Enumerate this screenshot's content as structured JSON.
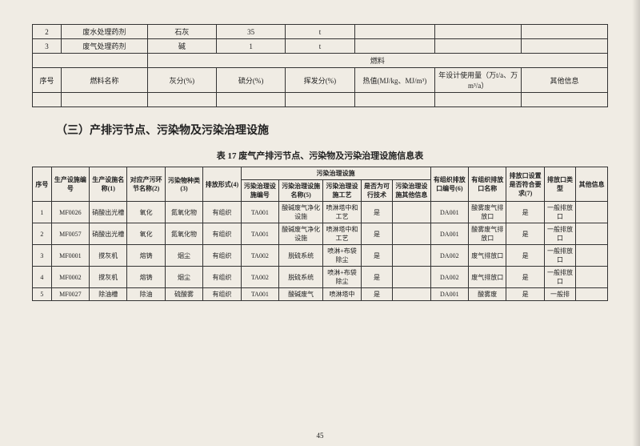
{
  "table1": {
    "rows": [
      {
        "seq": "2",
        "name": "废水处理药剂",
        "col3": "石灰",
        "col4": "35",
        "col5": "t",
        "col6": "",
        "col7": "",
        "col8": ""
      },
      {
        "seq": "3",
        "name": "废气处理药剂",
        "col3": "碱",
        "col4": "1",
        "col5": "t",
        "col6": "",
        "col7": "",
        "col8": ""
      }
    ],
    "fuel_label": "燃料",
    "headers": {
      "seq": "序号",
      "name": "燃料名称",
      "ash": "灰分(%)",
      "sulfur": "硫分(%)",
      "volatile": "挥发分(%)",
      "heat": "热值(MJ/kg、MJ/m³)",
      "usage": "年设计使用量（万t/a、万 m³/a）",
      "other": "其他信息"
    },
    "blank": ""
  },
  "section_title": "（三）产排污节点、污染物及污染治理设施",
  "table2_caption": "表 17  废气产排污节点、污染物及污染治理设施信息表",
  "table2": {
    "headers": {
      "seq": "序号",
      "facility_no": "生产设施编号",
      "facility_name": "生产设施名称(1)",
      "link_name": "对应产污环节名称(2)",
      "pollutant": "污染物种类(3)",
      "emit_form": "排放形式(4)",
      "treat_group": "污染治理设施",
      "treat_no": "污染治理设施编号",
      "treat_name": "污染治理设施名称(5)",
      "treat_tech": "污染治理设施工艺",
      "feasible": "是否为可行技术",
      "treat_other": "污染治理设施其他信息",
      "org_no": "有组织排放口编号(6)",
      "org_name": "有组织排放口名称",
      "meet_req": "排放口设置是否符合要求(7)",
      "type": "排放口类型",
      "other": "其他信息"
    },
    "rows": [
      {
        "seq": "1",
        "facility_no": "MF0026",
        "facility_name": "硝酸出光槽",
        "link_name": "氧化",
        "pollutant": "氮氧化物",
        "emit_form": "有组织",
        "treat_no": "TA001",
        "treat_name": "酸碱废气净化设施",
        "treat_tech": "喷淋塔中和工艺",
        "feasible": "是",
        "treat_other": "",
        "org_no": "DA001",
        "org_name": "酸雾废气排放口",
        "meet_req": "是",
        "type": "一般排放口",
        "other": ""
      },
      {
        "seq": "2",
        "facility_no": "MF0057",
        "facility_name": "硝酸出光槽",
        "link_name": "氧化",
        "pollutant": "氮氧化物",
        "emit_form": "有组织",
        "treat_no": "TA001",
        "treat_name": "酸碱废气净化设施",
        "treat_tech": "喷淋塔中和工艺",
        "feasible": "是",
        "treat_other": "",
        "org_no": "DA001",
        "org_name": "酸雾废气排放口",
        "meet_req": "是",
        "type": "一般排放口",
        "other": ""
      },
      {
        "seq": "3",
        "facility_no": "MF0001",
        "facility_name": "搅灰机",
        "link_name": "熔铸",
        "pollutant": "烟尘",
        "emit_form": "有组织",
        "treat_no": "TA002",
        "treat_name": "脱硫系统",
        "treat_tech": "喷淋+布袋除尘",
        "feasible": "是",
        "treat_other": "",
        "org_no": "DA002",
        "org_name": "废气排放口",
        "meet_req": "是",
        "type": "一般排放口",
        "other": ""
      },
      {
        "seq": "4",
        "facility_no": "MF0002",
        "facility_name": "搅灰机",
        "link_name": "熔铸",
        "pollutant": "烟尘",
        "emit_form": "有组织",
        "treat_no": "TA002",
        "treat_name": "脱硫系统",
        "treat_tech": "喷淋+布袋除尘",
        "feasible": "是",
        "treat_other": "",
        "org_no": "DA002",
        "org_name": "废气排放口",
        "meet_req": "是",
        "type": "一般排放口",
        "other": ""
      },
      {
        "seq": "5",
        "facility_no": "MF0027",
        "facility_name": "除油槽",
        "link_name": "除油",
        "pollutant": "硫酸雾",
        "emit_form": "有组织",
        "treat_no": "TA001",
        "treat_name": "酸碱废气",
        "treat_tech": "喷淋塔中",
        "feasible": "是",
        "treat_other": "",
        "org_no": "DA001",
        "org_name": "酸雾废",
        "meet_req": "是",
        "type": "一般排",
        "other": ""
      }
    ]
  },
  "page_num": "45"
}
